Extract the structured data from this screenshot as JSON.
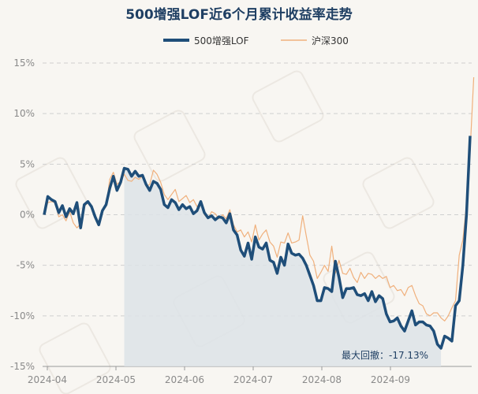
{
  "chart_data": {
    "type": "line",
    "title": "500增强LOF近6个月累计收益率走势",
    "xlabel": "",
    "ylabel": "",
    "ylim": [
      -15,
      15
    ],
    "y_ticks": [
      "15%",
      "10%",
      "5%",
      "0%",
      "-5%",
      "-10%",
      "-15%"
    ],
    "y_tick_values": [
      15,
      10,
      5,
      0,
      -5,
      -10,
      -15
    ],
    "x_ticks": [
      "2024-04",
      "2024-05",
      "2024-06",
      "2024-07",
      "2024-08",
      "2024-09"
    ],
    "grid": true,
    "legend_position": "top-center",
    "colors": {
      "fund": "#1f4e79",
      "index": "#f0b07c",
      "drawdown_fill": "#dde3e8",
      "title": "#1f3f63"
    },
    "drawdown_label": "最大回撤：-17.13%",
    "series": [
      {
        "name": "500增强LOF",
        "values": [
          0,
          1.8,
          1.5,
          1.3,
          0.2,
          0.9,
          -0.2,
          0.6,
          0.1,
          1.2,
          -1.3,
          1.0,
          1.3,
          0.8,
          -0.2,
          -1.0,
          0.4,
          1.0,
          2.6,
          3.8,
          2.4,
          3.2,
          4.6,
          4.5,
          3.8,
          4.3,
          3.8,
          3.9,
          3.0,
          2.4,
          3.3,
          3.1,
          2.5,
          1.0,
          0.7,
          1.5,
          1.2,
          0.5,
          1.0,
          0.6,
          0.8,
          0.1,
          0.4,
          1.3,
          0.2,
          -0.3,
          -0.1,
          -0.5,
          -0.2,
          -0.3,
          -0.8,
          0.1,
          -1.5,
          -2.0,
          -3.5,
          -4.1,
          -2.8,
          -4.4,
          -2.2,
          -3.2,
          -3.4,
          -2.8,
          -4.5,
          -4.7,
          -5.8,
          -4.2,
          -5.0,
          -2.9,
          -3.8,
          -4.0,
          -3.9,
          -4.3,
          -5.0,
          -6.0,
          -7.0,
          -8.5,
          -8.5,
          -7.2,
          -7.3,
          -7.6,
          -4.6,
          -6.2,
          -8.2,
          -7.3,
          -7.3,
          -7.2,
          -7.9,
          -8.0,
          -7.8,
          -8.5,
          -7.6,
          -8.6,
          -8.0,
          -8.3,
          -9.8,
          -10.6,
          -10.5,
          -10.2,
          -11.0,
          -11.5,
          -10.5,
          -9.5,
          -10.9,
          -10.6,
          -10.6,
          -10.9,
          -11.0,
          -11.5,
          -12.8,
          -13.2,
          -12.0,
          -12.2,
          -12.5,
          -9.0,
          -8.5,
          -5.0,
          0,
          7.8
        ]
      },
      {
        "name": "沪深300",
        "values": [
          0,
          1.2,
          1.3,
          1.2,
          -0.2,
          0.0,
          -0.6,
          0.3,
          -0.8,
          -1.3,
          -0.9,
          0.8,
          1.2,
          0.9,
          -0.1,
          -0.8,
          0.4,
          0.8,
          3.5,
          4.2,
          3.0,
          3.3,
          4.0,
          3.4,
          3.3,
          3.7,
          3.5,
          3.8,
          2.8,
          3.0,
          4.4,
          4.0,
          3.2,
          2.0,
          1.5,
          2.0,
          2.5,
          1.3,
          1.6,
          1.9,
          1.2,
          1.5,
          0.8,
          1.2,
          0.0,
          -0.4,
          0.3,
          0.1,
          -0.4,
          0.0,
          -0.4,
          0.5,
          -1.0,
          -1.7,
          -1.5,
          -2.2,
          -1.7,
          -2.7,
          -1.0,
          -2.5,
          -1.9,
          -1.5,
          -2.7,
          -3.1,
          -4.2,
          -2.7,
          -2.8,
          -1.8,
          -2.8,
          -2.7,
          -2.5,
          -0.1,
          -2.1,
          -4.0,
          -4.6,
          -6.3,
          -5.7,
          -5.0,
          -5.6,
          -3.1,
          -5.8,
          -4.5,
          -5.8,
          -5.9,
          -5.3,
          -6.2,
          -6.7,
          -5.7,
          -6.3,
          -5.8,
          -5.9,
          -6.3,
          -6.0,
          -6.3,
          -6.1,
          -7.2,
          -7.0,
          -7.5,
          -7.4,
          -8.0,
          -7.2,
          -7.0,
          -8.0,
          -8.8,
          -9.0,
          -9.8,
          -10.0,
          -9.7,
          -9.7,
          -10.2,
          -10.5,
          -10.0,
          -9.2,
          -8.5,
          -4.0,
          -2.5,
          1.0,
          6.3,
          13.6
        ]
      }
    ]
  }
}
